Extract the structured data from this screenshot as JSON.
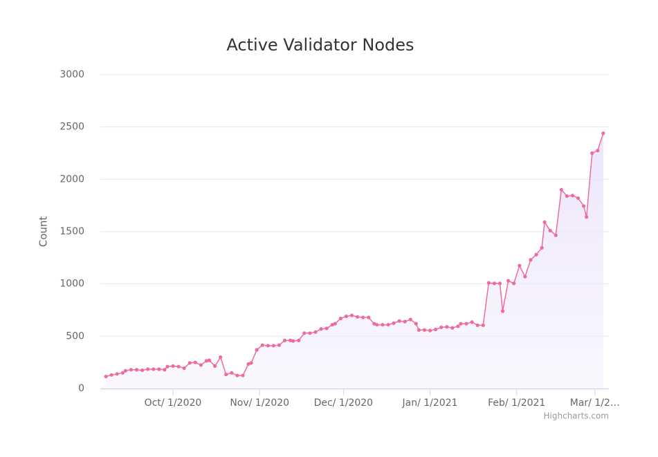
{
  "chart_data": {
    "type": "area",
    "title": "Active Validator Nodes",
    "ylabel": "Count",
    "credits": "Highcharts.com",
    "x": [
      "2020-09-07",
      "2020-09-09",
      "2020-09-11",
      "2020-09-13",
      "2020-09-14",
      "2020-09-16",
      "2020-09-18",
      "2020-09-20",
      "2020-09-22",
      "2020-09-24",
      "2020-09-26",
      "2020-09-28",
      "2020-09-29",
      "2020-10-01",
      "2020-10-03",
      "2020-10-05",
      "2020-10-07",
      "2020-10-09",
      "2020-10-11",
      "2020-10-13",
      "2020-10-14",
      "2020-10-16",
      "2020-10-18",
      "2020-10-20",
      "2020-10-22",
      "2020-10-24",
      "2020-10-26",
      "2020-10-28",
      "2020-10-29",
      "2020-10-31",
      "2020-11-02",
      "2020-11-04",
      "2020-11-06",
      "2020-11-08",
      "2020-11-10",
      "2020-11-12",
      "2020-11-13",
      "2020-11-15",
      "2020-11-17",
      "2020-11-19",
      "2020-11-21",
      "2020-11-23",
      "2020-11-25",
      "2020-11-27",
      "2020-11-28",
      "2020-11-30",
      "2020-12-02",
      "2020-12-04",
      "2020-12-06",
      "2020-12-08",
      "2020-12-10",
      "2020-12-12",
      "2020-12-13",
      "2020-12-15",
      "2020-12-17",
      "2020-12-19",
      "2020-12-21",
      "2020-12-23",
      "2020-12-25",
      "2020-12-27",
      "2020-12-28",
      "2020-12-30",
      "2021-01-01",
      "2021-01-03",
      "2021-01-05",
      "2021-01-07",
      "2021-01-09",
      "2021-01-11",
      "2021-01-12",
      "2021-01-14",
      "2021-01-16",
      "2021-01-18",
      "2021-01-20",
      "2021-01-22",
      "2021-01-24",
      "2021-01-26",
      "2021-01-27",
      "2021-01-29",
      "2021-01-31",
      "2021-02-02",
      "2021-02-04",
      "2021-02-06",
      "2021-02-08",
      "2021-02-10",
      "2021-02-11",
      "2021-02-13",
      "2021-02-15",
      "2021-02-17",
      "2021-02-19",
      "2021-02-21",
      "2021-02-23",
      "2021-02-25",
      "2021-02-26",
      "2021-02-28",
      "2021-03-02",
      "2021-03-04"
    ],
    "series": [
      {
        "name": "Count",
        "color": "#ee6b9e",
        "values": [
          115,
          130,
          140,
          150,
          170,
          180,
          180,
          175,
          185,
          185,
          185,
          180,
          210,
          215,
          210,
          195,
          245,
          250,
          225,
          265,
          270,
          215,
          300,
          135,
          150,
          125,
          125,
          235,
          245,
          370,
          415,
          410,
          410,
          415,
          460,
          460,
          455,
          460,
          530,
          530,
          540,
          570,
          575,
          610,
          620,
          670,
          690,
          700,
          685,
          680,
          680,
          620,
          610,
          610,
          610,
          625,
          645,
          640,
          660,
          620,
          560,
          560,
          555,
          565,
          585,
          590,
          580,
          595,
          620,
          620,
          635,
          605,
          605,
          1010,
          1005,
          1005,
          740,
          1030,
          1005,
          1175,
          1070,
          1230,
          1280,
          1345,
          1590,
          1510,
          1465,
          1900,
          1840,
          1845,
          1820,
          1745,
          1640,
          2250,
          2275,
          2440
        ]
      }
    ],
    "xlim": [
      "2020-09-05",
      "2021-03-06"
    ],
    "xticks": [
      {
        "value": "2020-10-01",
        "label": "Oct/ 1/2020"
      },
      {
        "value": "2020-11-01",
        "label": "Nov/ 1/2020"
      },
      {
        "value": "2020-12-01",
        "label": "Dec/ 1/2020"
      },
      {
        "value": "2021-01-01",
        "label": "Jan/ 1/2021"
      },
      {
        "value": "2021-02-01",
        "label": "Feb/ 1/2021"
      },
      {
        "value": "2021-03-01",
        "label": "Mar/ 1/2…"
      }
    ],
    "ylim": [
      0,
      3000
    ],
    "yticks": [
      0,
      500,
      1000,
      1500,
      2000,
      2500,
      3000
    ],
    "grid": true
  }
}
